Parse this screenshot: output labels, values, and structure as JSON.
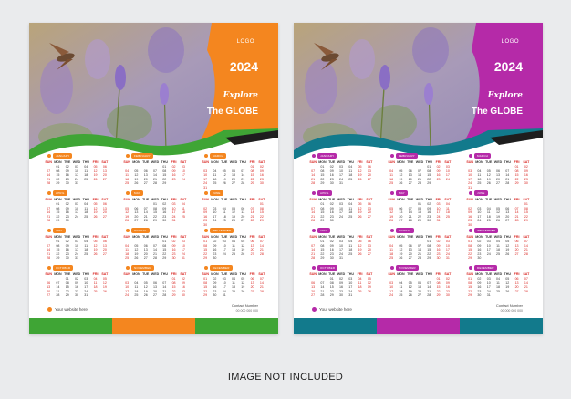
{
  "caption": "IMAGE NOT INCLUDED",
  "day_headers": [
    "SUN",
    "MON",
    "TUE",
    "WED",
    "THU",
    "FRI",
    "SAT"
  ],
  "posters": [
    {
      "theme": "orange",
      "colors": {
        "primary": "#f4861f",
        "wave": "#3fa535",
        "accent": "#1e1e1e",
        "bar": [
          "#3fa535",
          "#f4861f",
          "#3fa535"
        ]
      },
      "logo": "LOGO",
      "year": "2024",
      "tagline1": "Explore",
      "tagline2": "The GLOBE",
      "website": "Your website here",
      "contact_label": "Contact Number",
      "contact_number": "00 000 000 000"
    },
    {
      "theme": "magenta",
      "colors": {
        "primary": "#b52aa8",
        "wave": "#127a8c",
        "accent": "#1e1e1e",
        "bar": [
          "#127a8c",
          "#b52aa8",
          "#127a8c"
        ]
      },
      "logo": "LOGO",
      "year": "2024",
      "tagline1": "Explore",
      "tagline2": "The GLOBE",
      "website": "Your website here",
      "contact_label": "Contact Number",
      "contact_number": "00 000 000 000"
    }
  ],
  "months": [
    {
      "name": "JANUARY",
      "start": 1,
      "days": 31
    },
    {
      "name": "FEBRUARY",
      "start": 4,
      "days": 29
    },
    {
      "name": "MARCH",
      "start": 5,
      "days": 31
    },
    {
      "name": "APRIL",
      "start": 1,
      "days": 30
    },
    {
      "name": "MAY",
      "start": 3,
      "days": 31
    },
    {
      "name": "JUNE",
      "start": 6,
      "days": 30
    },
    {
      "name": "JULY",
      "start": 1,
      "days": 31
    },
    {
      "name": "AUGUST",
      "start": 4,
      "days": 31
    },
    {
      "name": "SEPTEMBER",
      "start": 0,
      "days": 30
    },
    {
      "name": "OCTOBER",
      "start": 2,
      "days": 31
    },
    {
      "name": "NOVEMBER",
      "start": 5,
      "days": 30
    },
    {
      "name": "DECEMBER",
      "start": 0,
      "days": 31
    }
  ]
}
